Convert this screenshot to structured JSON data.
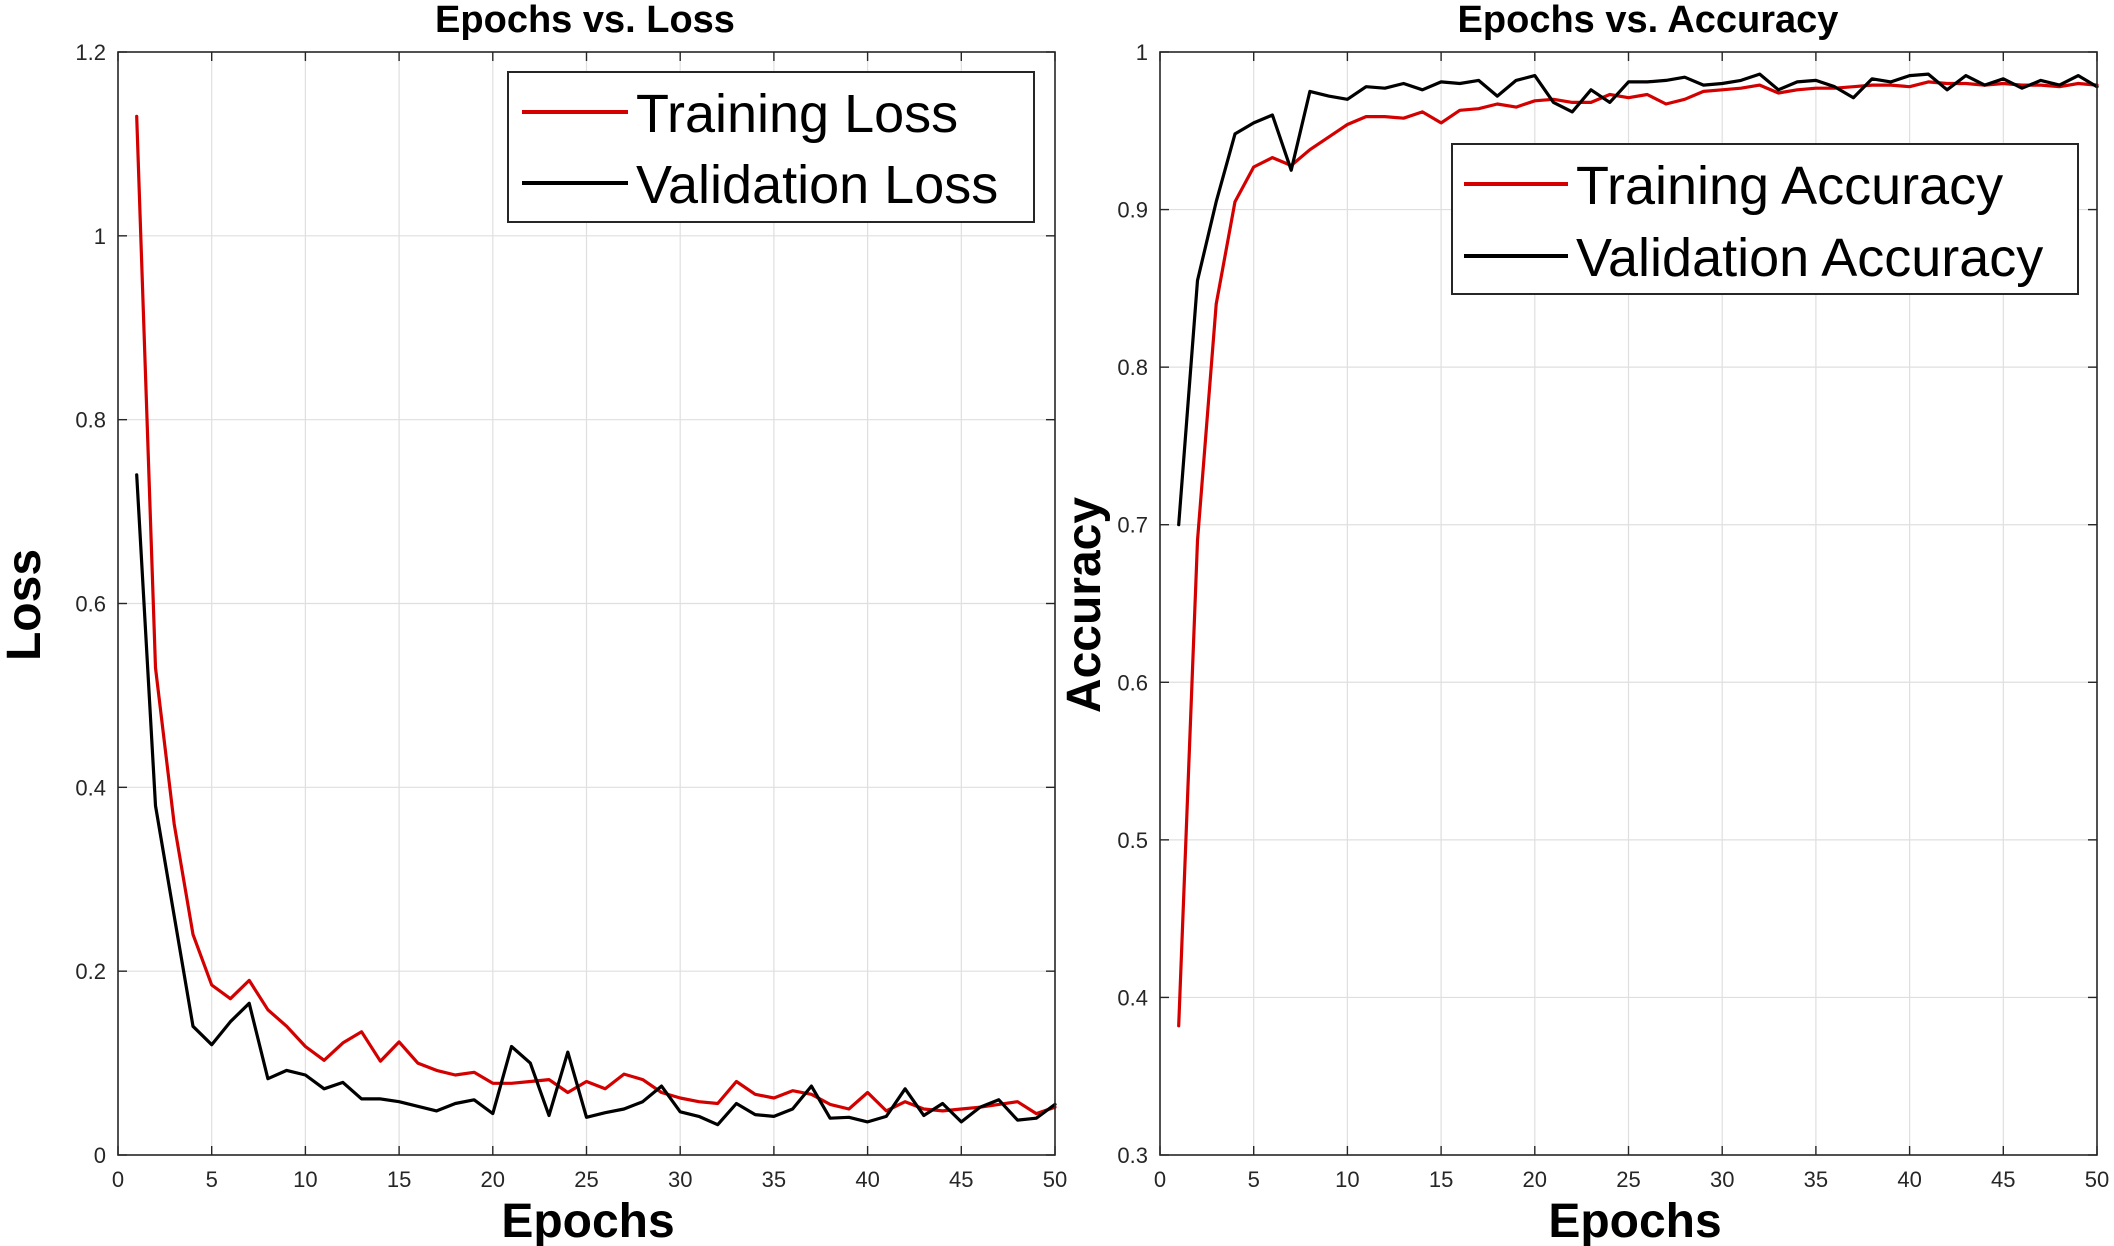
{
  "chart_data": [
    {
      "type": "line",
      "title": "Epochs vs. Loss",
      "xlabel": "Epochs",
      "ylabel": "Loss",
      "xlim": [
        0,
        50
      ],
      "ylim": [
        0,
        1.2
      ],
      "xticks": [
        0,
        5,
        10,
        15,
        20,
        25,
        30,
        35,
        40,
        45,
        50
      ],
      "yticks": [
        0,
        0.2,
        0.4,
        0.6,
        0.8,
        1.0,
        1.2
      ],
      "ytick_labels": [
        "0",
        "0.2",
        "0.4",
        "0.6",
        "0.8",
        "1",
        "1.2"
      ],
      "grid": true,
      "legend_position": "top-right",
      "x": [
        1,
        2,
        3,
        4,
        5,
        6,
        7,
        8,
        9,
        10,
        11,
        12,
        13,
        14,
        15,
        16,
        17,
        18,
        19,
        20,
        21,
        22,
        23,
        24,
        25,
        26,
        27,
        28,
        29,
        30,
        31,
        32,
        33,
        34,
        35,
        36,
        37,
        38,
        39,
        40,
        41,
        42,
        43,
        44,
        45,
        46,
        47,
        48,
        49,
        50
      ],
      "series": [
        {
          "name": "Training Loss",
          "color": "#d40000",
          "values": [
            1.13,
            0.53,
            0.36,
            0.24,
            0.185,
            0.17,
            0.19,
            0.158,
            0.14,
            0.118,
            0.103,
            0.122,
            0.134,
            0.102,
            0.123,
            0.1,
            0.092,
            0.087,
            0.09,
            0.078,
            0.078,
            0.08,
            0.082,
            0.068,
            0.08,
            0.072,
            0.088,
            0.082,
            0.068,
            0.062,
            0.058,
            0.056,
            0.08,
            0.066,
            0.062,
            0.07,
            0.066,
            0.055,
            0.05,
            0.068,
            0.048,
            0.058,
            0.05,
            0.048,
            0.05,
            0.052,
            0.055,
            0.058,
            0.045,
            0.052
          ]
        },
        {
          "name": "Validation Loss",
          "color": "#000000",
          "values": [
            0.74,
            0.38,
            0.26,
            0.14,
            0.12,
            0.145,
            0.165,
            0.083,
            0.092,
            0.087,
            0.072,
            0.079,
            0.061,
            0.061,
            0.058,
            0.053,
            0.048,
            0.056,
            0.06,
            0.045,
            0.118,
            0.1,
            0.043,
            0.112,
            0.041,
            0.046,
            0.05,
            0.058,
            0.075,
            0.047,
            0.042,
            0.033,
            0.056,
            0.044,
            0.042,
            0.05,
            0.075,
            0.04,
            0.041,
            0.036,
            0.042,
            0.072,
            0.043,
            0.056,
            0.036,
            0.052,
            0.06,
            0.038,
            0.04,
            0.055
          ]
        }
      ]
    },
    {
      "type": "line",
      "title": "Epochs vs. Accuracy",
      "xlabel": "Epochs",
      "ylabel": "Accuracy",
      "xlim": [
        0,
        50
      ],
      "ylim": [
        0.3,
        1.0
      ],
      "xticks": [
        0,
        5,
        10,
        15,
        20,
        25,
        30,
        35,
        40,
        45,
        50
      ],
      "yticks": [
        0.3,
        0.4,
        0.5,
        0.6,
        0.7,
        0.8,
        0.9,
        1.0
      ],
      "ytick_labels": [
        "0.3",
        "0.4",
        "0.5",
        "0.6",
        "0.7",
        "0.8",
        "0.9",
        "1"
      ],
      "grid": true,
      "legend_position": "top-right",
      "x": [
        1,
        2,
        3,
        4,
        5,
        6,
        7,
        8,
        9,
        10,
        11,
        12,
        13,
        14,
        15,
        16,
        17,
        18,
        19,
        20,
        21,
        22,
        23,
        24,
        25,
        26,
        27,
        28,
        29,
        30,
        31,
        32,
        33,
        34,
        35,
        36,
        37,
        38,
        39,
        40,
        41,
        42,
        43,
        44,
        45,
        46,
        47,
        48,
        49,
        50
      ],
      "series": [
        {
          "name": "Training Accuracy",
          "color": "#d40000",
          "values": [
            0.382,
            0.69,
            0.84,
            0.905,
            0.927,
            0.933,
            0.928,
            0.938,
            0.946,
            0.954,
            0.959,
            0.959,
            0.958,
            0.962,
            0.955,
            0.963,
            0.964,
            0.967,
            0.965,
            0.969,
            0.97,
            0.968,
            0.968,
            0.973,
            0.971,
            0.973,
            0.967,
            0.97,
            0.975,
            0.976,
            0.977,
            0.979,
            0.974,
            0.976,
            0.977,
            0.977,
            0.978,
            0.979,
            0.979,
            0.978,
            0.981,
            0.98,
            0.98,
            0.979,
            0.98,
            0.979,
            0.979,
            0.978,
            0.98,
            0.979
          ]
        },
        {
          "name": "Validation Accuracy",
          "color": "#000000",
          "values": [
            0.7,
            0.855,
            0.905,
            0.948,
            0.955,
            0.96,
            0.925,
            0.975,
            0.972,
            0.97,
            0.978,
            0.977,
            0.98,
            0.976,
            0.981,
            0.98,
            0.982,
            0.972,
            0.982,
            0.985,
            0.968,
            0.962,
            0.976,
            0.968,
            0.981,
            0.981,
            0.982,
            0.984,
            0.979,
            0.98,
            0.982,
            0.986,
            0.976,
            0.981,
            0.982,
            0.978,
            0.971,
            0.983,
            0.981,
            0.985,
            0.986,
            0.976,
            0.985,
            0.979,
            0.983,
            0.977,
            0.982,
            0.979,
            0.985,
            0.978
          ]
        }
      ]
    }
  ]
}
